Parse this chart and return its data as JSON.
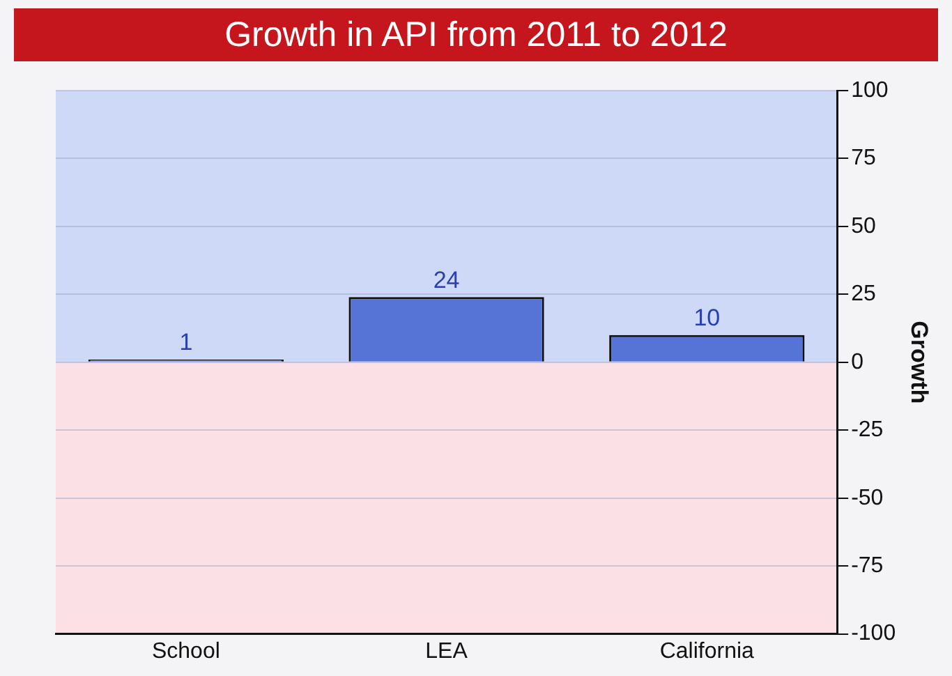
{
  "chart_data": {
    "type": "bar",
    "title": "Growth in API from 2011 to 2012",
    "ylabel": "Growth",
    "categories": [
      "School",
      "LEA",
      "California"
    ],
    "values": [
      1,
      24,
      10
    ],
    "color": "#5673d6",
    "ylim": [
      -100,
      100
    ],
    "yticks": [
      -100,
      -75,
      -50,
      -25,
      0,
      25,
      50,
      75,
      100
    ],
    "grid": "y",
    "data_labels": true,
    "legend": false,
    "bands": [
      {
        "axis": "y",
        "from": 0,
        "to": 100,
        "color": "#cdd9f7"
      },
      {
        "axis": "y",
        "from": -100,
        "to": 0,
        "color": "#fbe1e6"
      }
    ]
  }
}
